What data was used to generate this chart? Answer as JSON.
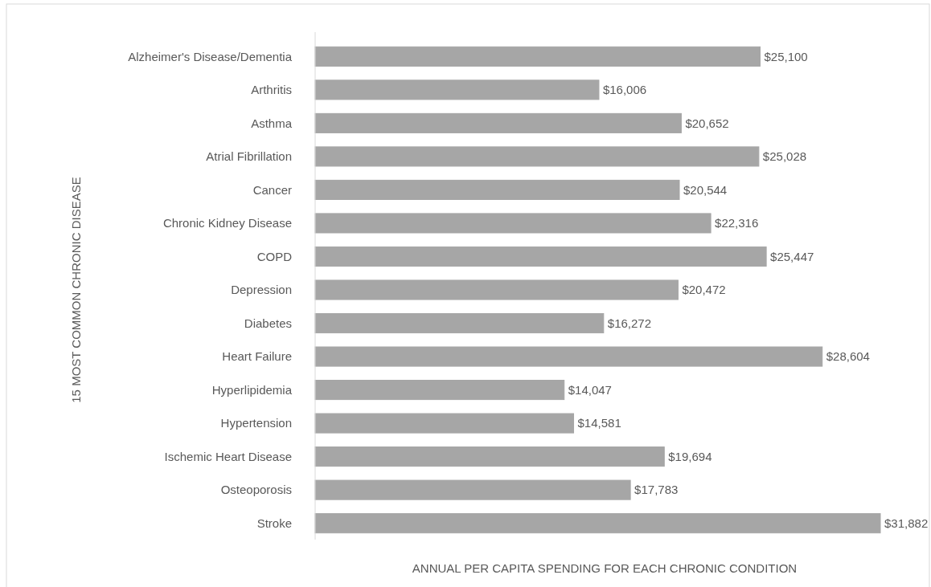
{
  "chart_data": {
    "type": "bar",
    "orientation": "horizontal",
    "ylabel": "15 MOST COMMON CHRONIC DISEASE",
    "xlabel": "ANNUAL PER CAPITA SPENDING FOR EACH CHRONIC CONDITION",
    "categories": [
      "Alzheimer's Disease/Dementia",
      "Arthritis",
      "Asthma",
      "Atrial Fibrillation",
      "Cancer",
      "Chronic Kidney Disease",
      "COPD",
      "Depression",
      "Diabetes",
      "Heart Failure",
      "Hyperlipidemia",
      "Hypertension",
      "Ischemic Heart Disease",
      "Osteoporosis",
      "Stroke"
    ],
    "values": [
      25100,
      16006,
      20652,
      25028,
      20544,
      22316,
      25447,
      20472,
      16272,
      28604,
      14047,
      14581,
      19694,
      17783,
      31882
    ],
    "value_labels": [
      "$25,100",
      "$16,006",
      "$20,652",
      "$25,028",
      "$20,544",
      "$22,316",
      "$25,447",
      "$20,472",
      "$16,272",
      "$28,604",
      "$14,047",
      "$14,581",
      "$19,694",
      "$17,783",
      "$31,882"
    ],
    "color": "#a6a6a6"
  }
}
